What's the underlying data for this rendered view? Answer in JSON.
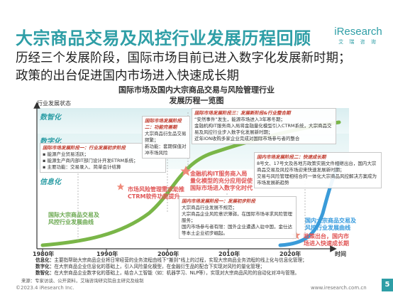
{
  "header": {
    "title": "大宗商品交易及风控行业发展历程回顾",
    "logo_text": "iResearch",
    "logo_sub": "艾 瑞 咨 询"
  },
  "subtitle": {
    "line1": "历经三个发展阶段，国际市场目前已进入数字化发展新时期；",
    "line2": "政策的出台促进国内市场进入快速成长期"
  },
  "chart": {
    "title_line1": "国际市场及国内大宗商品交易与风险管理行业",
    "title_line2": "发展历程一览图",
    "y_label": "行业发展状态",
    "x_label": "时间",
    "x_ticks": [
      "1980年",
      "1990年",
      "2000年",
      "2010年",
      "2020年"
    ],
    "stages": [
      "数智化",
      "数字化",
      "信息化"
    ],
    "boxes": {
      "intl_stage1": {
        "title": "国际市场发展阶段一：行业发展初步阶段",
        "lines": [
          "能源产业贸易活跃；",
          "能源生产商内部IT部门设计开发ETRM系统；",
          "主要功能：交易录入、简单会计结算"
        ]
      },
      "intl_stage2": {
        "title": "国际市场发展阶段二：功能完善期",
        "lines": [
          "大宗商品衍生品交易频繁；",
          "新功能：套期保值对冲市场风险"
        ]
      },
      "intl_stage3": {
        "title": "国际市场发展阶段三：发展新阶段&行业整合期",
        "lines": [
          "“安然事件”发生，能源市场进入3年寒冬期；",
          "金融机构IT服务商入局将金融量化模型引入CTRM系统，大宗商品交易及风控行业步入数字化发展新时期；",
          "近年ION收购多家企业完成对国际市场参与者的整合"
        ]
      },
      "domestic_stage1": {
        "title": "国内市场发展阶段一：发展初步阶段",
        "lines": [
          "大宗商品行业发展不规范；",
          "大宗商品企业风险意识薄弱，在国际市场寻求风险管理服务；",
          "国内市场参与者有限：国外企业遭遇入驻中国，金仕达等本土企业初步崛起。"
        ]
      },
      "domestic_stage2": {
        "title": "国内市场发展阶段二：快速成长期",
        "lines": [
          "8号文、17号文及各地方政策实施文件相继出台，国内大宗商品交易及风控市场迎来快速发展新时期；",
          "交易与风险管理相结合的一体化大宗商品风控解决方案成为市场发展新趋势"
        ]
      }
    },
    "notes": {
      "ctrm_enter": "市场风险管理需求助推\nCTRM软件功能提升",
      "fin_it": "金融机构IT服务商入局\n量化模型的充分应用促使\n国际市场进入数字化时代",
      "policy": "政策出台，国内市\n场进入快速成长期",
      "intl_curve": "国际大宗商品交易及\n风控行业发展曲线",
      "domestic_curve": "国内大宗商品交易及\n风控行业发展曲线"
    },
    "colors": {
      "intl_curve": "#7ab648",
      "domestic_curve": "#3a9bd9",
      "accent": "#2e9ea6",
      "red": "#e05555"
    }
  },
  "legend": [
    {
      "term": "信息化：",
      "text": "主要指帮助大宗商品企业将日常经营的业务流程由线下“搬到”线上的过程，实现大宗商品业务流程的线上化与信息化管理；"
    },
    {
      "term": "数字化：",
      "text": "在大宗商品企业信息化的基础上，引入风险量化模型，在金融衍生品的配合下实现对风险的量化管理；"
    },
    {
      "term": "数智化：",
      "text": "在大宗商品企业数字化的基础上，结合人工智能（如：机器学习、NLP等），实现对大宗商品风险的自动化对冲与管理。"
    }
  ],
  "source": "来源：专家访谈、公开资料，艾瑞咨询研究院自主研究及绘制",
  "footer": {
    "copyright": "©2023.4 iResearch Inc.",
    "website": "www.iresearch.com.cn",
    "page": "5"
  }
}
